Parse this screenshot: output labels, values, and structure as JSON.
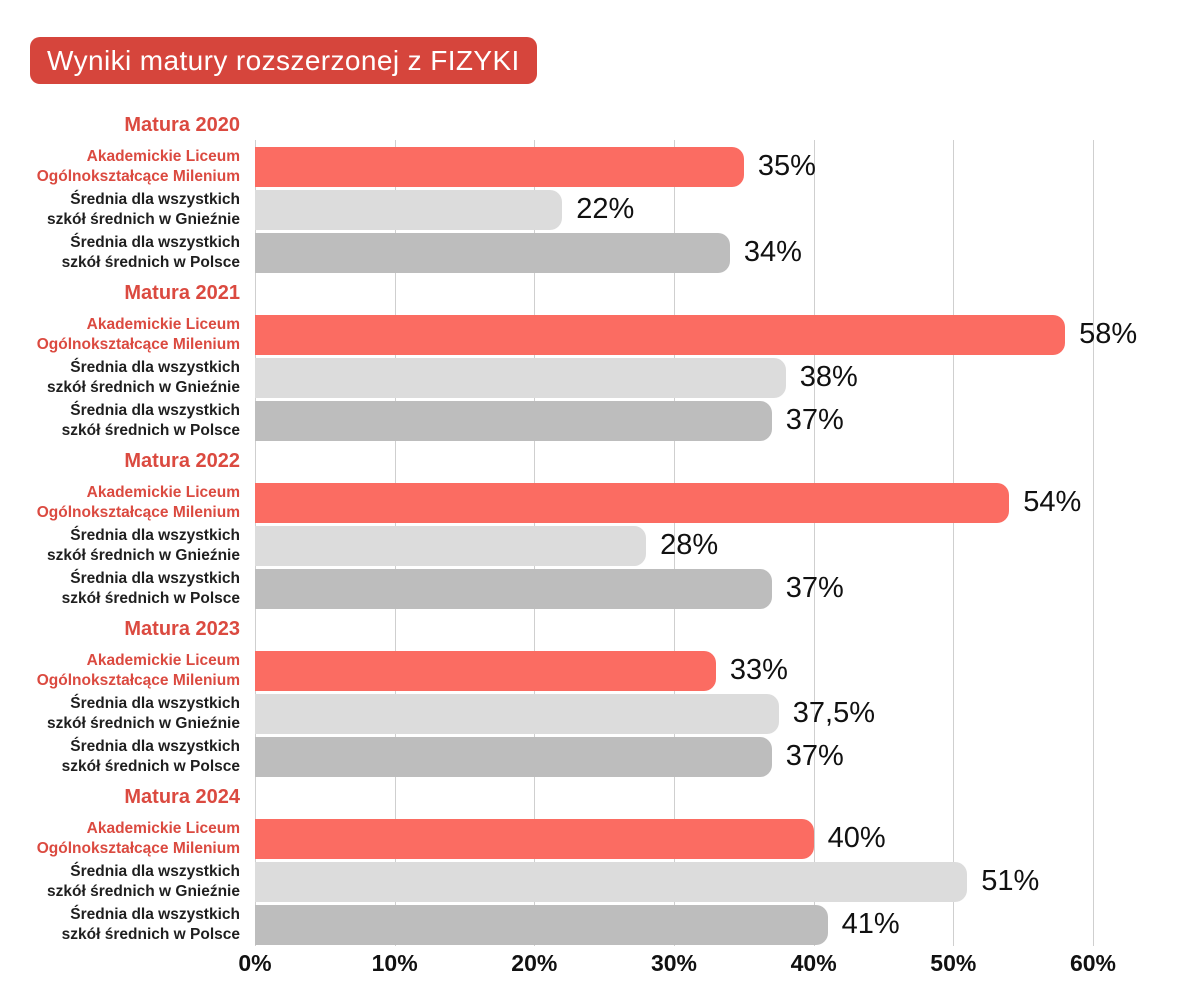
{
  "title": "Wyniki matury rozszerzonej z FIZYKI",
  "colors": {
    "banner_bg": "#D6453C",
    "banner_text": "#FFFFFF",
    "accent_red_text": "#DB4A40",
    "bar_milenium": "#FB6C62",
    "bar_gniezno": "#DCDCDC",
    "bar_polska": "#BDBDBD",
    "gridline": "#CFCFCF",
    "label_text": "#1F1F1F",
    "value_text": "#111111"
  },
  "chart_data": {
    "type": "bar",
    "orientation": "horizontal",
    "title": "Wyniki matury rozszerzonej z FIZYKI",
    "unit": "%",
    "xlim": [
      0,
      60
    ],
    "x_ticks": [
      "0%",
      "10%",
      "20%",
      "30%",
      "40%",
      "50%",
      "60%"
    ],
    "grid": "vertical",
    "legend": "none",
    "series_names": [
      "Akademickie Liceum Ogólnokształcące Milenium",
      "Średnia dla wszystkich szkół średnich w Gnieźnie",
      "Średnia dla wszystkich szkół średnich w Polsce"
    ],
    "groups": [
      {
        "heading": "Matura 2020",
        "bars": [
          {
            "label_line1": "Akademickie Liceum",
            "label_line2": "Ogólnokształcące Milenium",
            "value": 35,
            "value_label": "35%"
          },
          {
            "label_line1": "Średnia dla wszystkich",
            "label_line2": "szkół średnich w Gnieźnie",
            "value": 22,
            "value_label": "22%"
          },
          {
            "label_line1": "Średnia dla wszystkich",
            "label_line2": "szkół średnich w Polsce",
            "value": 34,
            "value_label": "34%"
          }
        ]
      },
      {
        "heading": "Matura 2021",
        "bars": [
          {
            "label_line1": "Akademickie Liceum",
            "label_line2": "Ogólnokształcące Milenium",
            "value": 58,
            "value_label": "58%"
          },
          {
            "label_line1": "Średnia dla wszystkich",
            "label_line2": "szkół średnich w Gnieźnie",
            "value": 38,
            "value_label": "38%"
          },
          {
            "label_line1": "Średnia dla wszystkich",
            "label_line2": "szkół średnich w Polsce",
            "value": 37,
            "value_label": "37%"
          }
        ]
      },
      {
        "heading": "Matura 2022",
        "bars": [
          {
            "label_line1": "Akademickie Liceum",
            "label_line2": "Ogólnokształcące Milenium",
            "value": 54,
            "value_label": "54%"
          },
          {
            "label_line1": "Średnia dla wszystkich",
            "label_line2": "szkół średnich w Gnieźnie",
            "value": 28,
            "value_label": "28%"
          },
          {
            "label_line1": "Średnia dla wszystkich",
            "label_line2": "szkół średnich w Polsce",
            "value": 37,
            "value_label": "37%"
          }
        ]
      },
      {
        "heading": "Matura 2023",
        "bars": [
          {
            "label_line1": "Akademickie Liceum",
            "label_line2": "Ogólnokształcące Milenium",
            "value": 33,
            "value_label": "33%"
          },
          {
            "label_line1": "Średnia dla wszystkich",
            "label_line2": "szkół średnich w Gnieźnie",
            "value": 37.5,
            "value_label": "37,5%"
          },
          {
            "label_line1": "Średnia dla wszystkich",
            "label_line2": "szkół średnich w Polsce",
            "value": 37,
            "value_label": "37%"
          }
        ]
      },
      {
        "heading": "Matura 2024",
        "bars": [
          {
            "label_line1": "Akademickie Liceum",
            "label_line2": "Ogólnokształcące Milenium",
            "value": 40,
            "value_label": "40%"
          },
          {
            "label_line1": "Średnia dla wszystkich",
            "label_line2": "szkół średnich w Gnieźnie",
            "value": 51,
            "value_label": "51%"
          },
          {
            "label_line1": "Średnia dla wszystkich",
            "label_line2": "szkół średnich w Polsce",
            "value": 41,
            "value_label": "41%"
          }
        ]
      }
    ]
  }
}
